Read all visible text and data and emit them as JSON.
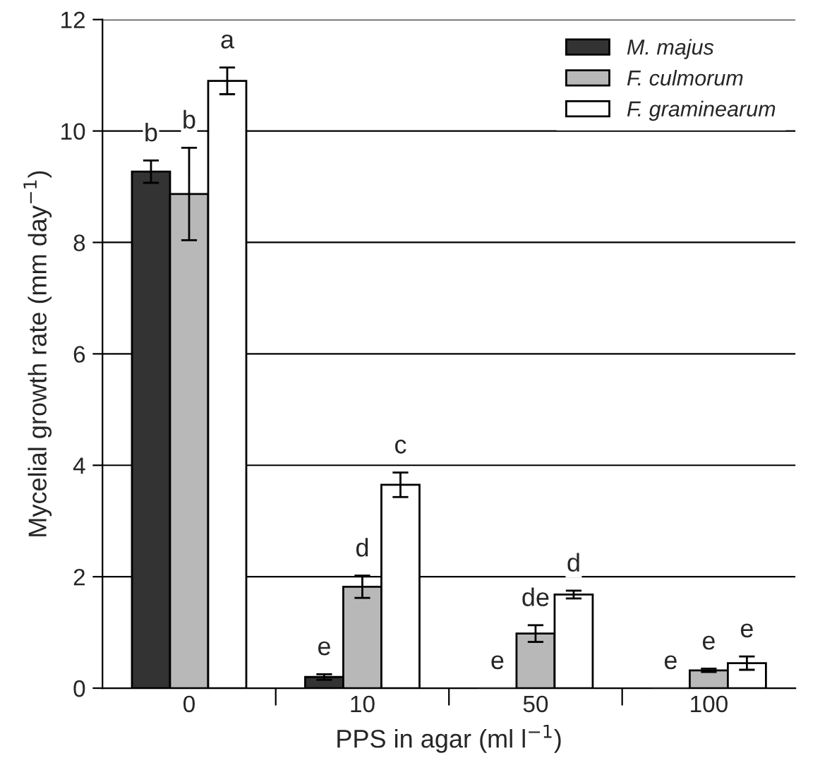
{
  "chart_data": {
    "type": "bar",
    "xlabel": "PPS in agar (ml l$^{−1}$)",
    "ylabel": "Mycelial growth rate (mm day$^{−1}$)",
    "categories": [
      "0",
      "10",
      "50",
      "100"
    ],
    "series": [
      {
        "name": "M. majus",
        "color": "#333333",
        "values": [
          9.27,
          0.2,
          0,
          0
        ],
        "errors": [
          0.2,
          0.05,
          null,
          null
        ],
        "value_labels": [
          "b",
          "e",
          "e",
          "e"
        ]
      },
      {
        "name": "F. culmorum",
        "color": "#b8b8b8",
        "values": [
          8.87,
          1.82,
          0.98,
          0.32
        ],
        "errors": [
          0.83,
          0.2,
          0.15,
          0.03
        ],
        "value_labels": [
          "b",
          "d",
          "de",
          "e"
        ]
      },
      {
        "name": "F. graminearum",
        "color": "#ffffff",
        "values": [
          10.9,
          3.65,
          1.68,
          0.45
        ],
        "errors": [
          0.24,
          0.22,
          0.07,
          0.12
        ],
        "value_labels": [
          "a",
          "c",
          "d",
          "e"
        ]
      }
    ],
    "ylim": [
      0,
      12
    ],
    "yticks": [
      0,
      2,
      4,
      6,
      8,
      10,
      12
    ],
    "grid": "y",
    "legend": "top right"
  }
}
